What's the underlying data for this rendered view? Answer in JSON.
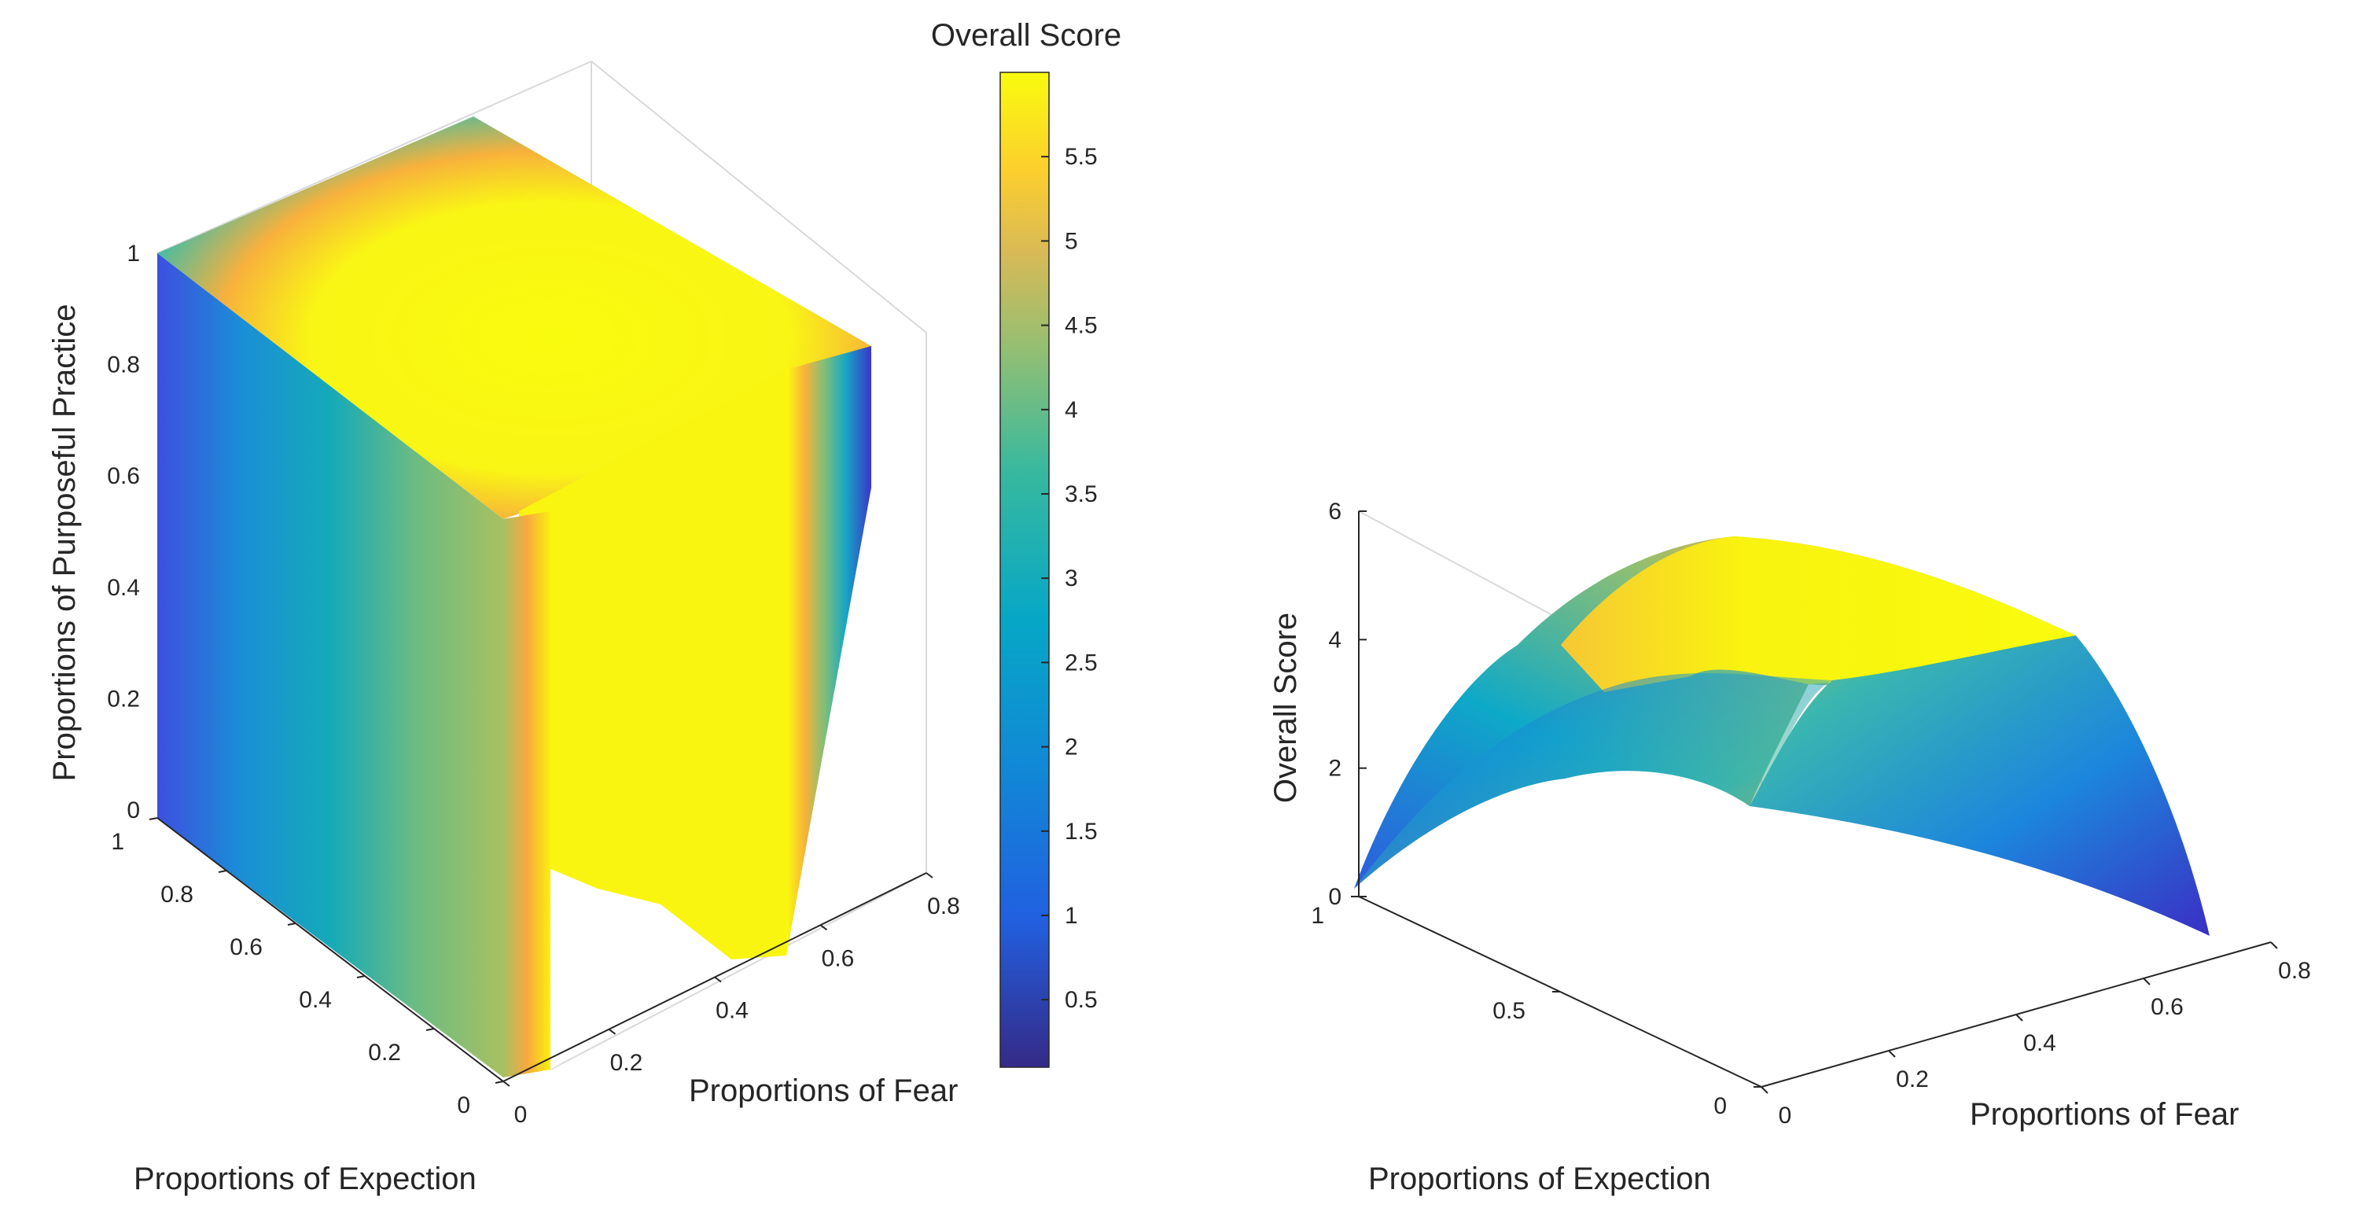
{
  "colormap": "parula",
  "chart_data": [
    {
      "type": "surface",
      "view": "3d",
      "xlabel": "Proportions of Expection",
      "ylabel": "Proportions of Fear",
      "zlabel": "Proportions of Purposeful Practice",
      "xlim": [
        0,
        1
      ],
      "ylim": [
        0,
        0.8
      ],
      "zlim": [
        0,
        1
      ],
      "x_ticks": [
        "0",
        "0.2",
        "0.4",
        "0.6",
        "0.8",
        "1"
      ],
      "y_ticks": [
        "0",
        "0.2",
        "0.4",
        "0.6",
        "0.8"
      ],
      "z_ticks": [
        "0",
        "0.2",
        "0.4",
        "0.6",
        "0.8",
        "1"
      ],
      "color_variable": "Overall Score",
      "color_range": [
        0.1,
        6.0
      ],
      "colorbar": {
        "title": "Overall Score",
        "ticks": [
          "0.5",
          "1",
          "1.5",
          "2",
          "2.5",
          "3",
          "3.5",
          "4",
          "4.5",
          "5",
          "5.5"
        ]
      }
    },
    {
      "type": "surface",
      "view": "3d",
      "xlabel": "Proportions of Expection",
      "ylabel": "Proportions of Fear",
      "zlabel": "Overall Score",
      "xlim": [
        0,
        1
      ],
      "ylim": [
        0,
        0.8
      ],
      "zlim": [
        0,
        6
      ],
      "x_ticks": [
        "0",
        "0.5",
        "1"
      ],
      "y_ticks": [
        "0",
        "0.2",
        "0.4",
        "0.6",
        "0.8"
      ],
      "z_ticks": [
        "0",
        "2",
        "4",
        "6"
      ],
      "peak_value": 5.9
    }
  ]
}
